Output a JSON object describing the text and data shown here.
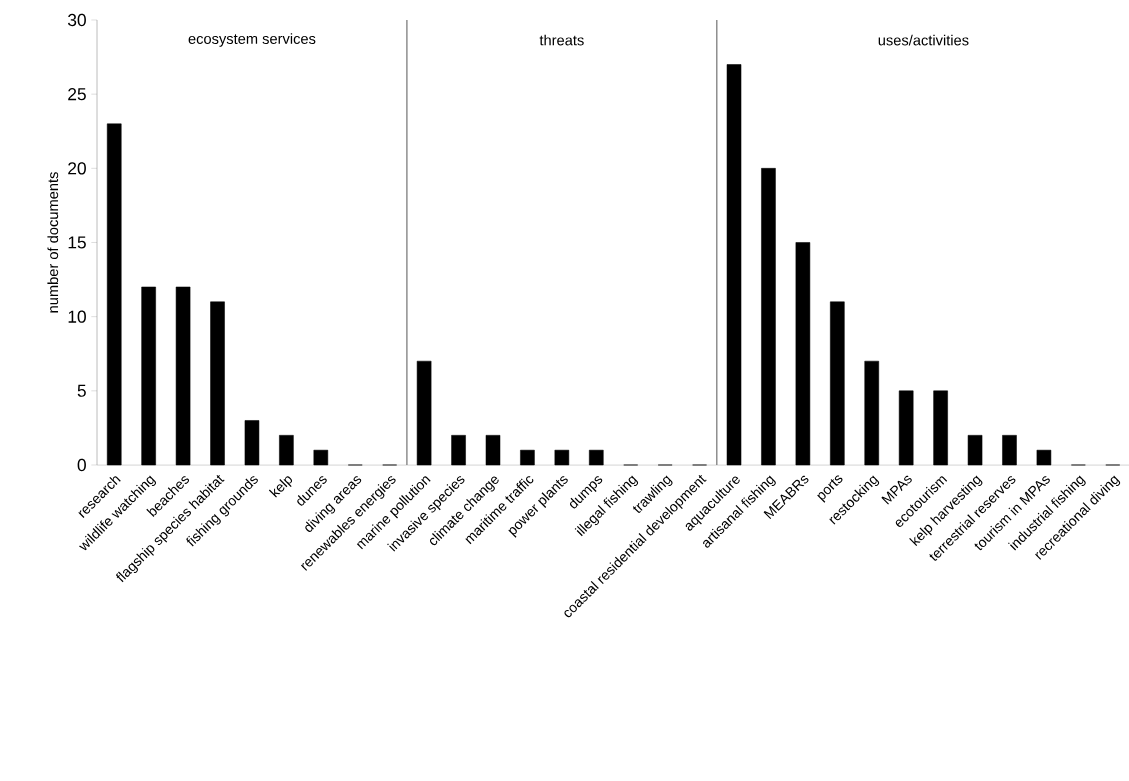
{
  "chart_data": {
    "type": "bar",
    "ylabel": "number of documents",
    "categories": [
      "research",
      "wildlife watching",
      "beaches",
      "flagship species habitat",
      "fishing grounds",
      "kelp",
      "dunes",
      "diving areas",
      "renewables energies",
      "marine pollution",
      "invasive species",
      "climate change",
      "maritime traffic",
      "power plants",
      "dumps",
      "illegal fishing",
      "trawling",
      "coastal residential development",
      "aquaculture",
      "artisanal fishing",
      "MEABRs",
      "ports",
      "restocking",
      "MPAs",
      "ecotourism",
      "kelp harvesting",
      "terrestrial reserves",
      "tourism in MPAs",
      "industrial fishing",
      "recreational diving"
    ],
    "values": [
      23,
      12,
      12,
      11,
      3,
      2,
      1,
      0,
      0,
      7,
      2,
      2,
      1,
      1,
      1,
      0,
      0,
      0,
      27,
      20,
      15,
      11,
      7,
      5,
      5,
      2,
      2,
      1,
      0,
      0
    ],
    "color": "#000000",
    "ylim": [
      0,
      30
    ],
    "yticks": [
      0,
      5,
      10,
      15,
      20,
      25,
      30
    ],
    "grid": false,
    "annotations": [
      "ecosystem services",
      "threats",
      "uses/activities"
    ]
  }
}
